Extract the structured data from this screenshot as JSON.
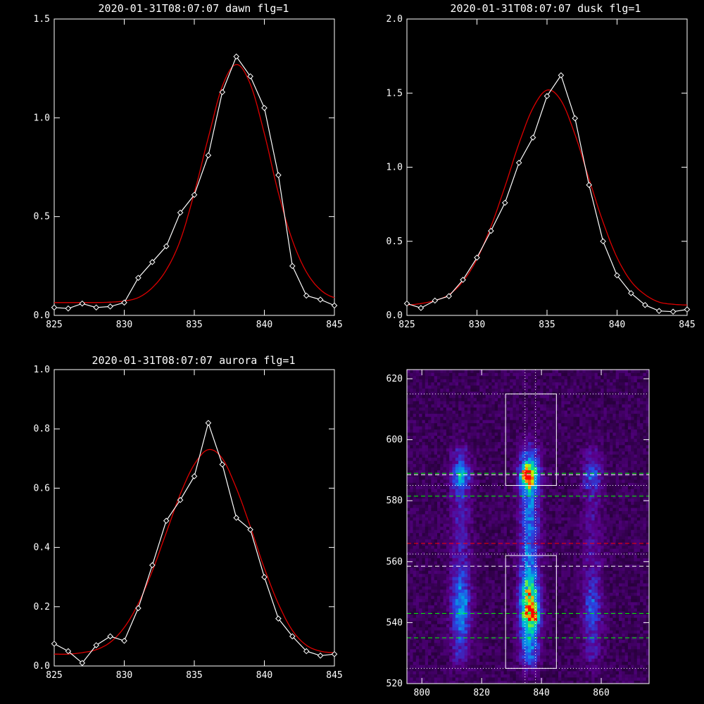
{
  "chart_data": [
    {
      "type": "line",
      "title": "2020-01-31T08:07:07 dawn flg=1",
      "xlim": [
        825,
        845
      ],
      "ylim": [
        0,
        1.5
      ],
      "xticks": [
        825,
        830,
        835,
        840,
        845
      ],
      "yticks": [
        0.0,
        0.5,
        1.0,
        1.5
      ],
      "ytick_labels": [
        "0.0",
        "0.5",
        "1.0",
        "1.5"
      ],
      "grid": false,
      "series": [
        {
          "color": "#ffffff",
          "marker": "diamond",
          "x": [
            825,
            826,
            827,
            828,
            829,
            830,
            831,
            832,
            833,
            834,
            835,
            836,
            837,
            838,
            839,
            840,
            841,
            842,
            843,
            844,
            845
          ],
          "y": [
            0.04,
            0.035,
            0.06,
            0.04,
            0.045,
            0.065,
            0.19,
            0.27,
            0.35,
            0.52,
            0.61,
            0.81,
            1.13,
            1.31,
            1.21,
            1.05,
            0.71,
            0.25,
            0.1,
            0.08,
            0.05
          ]
        },
        {
          "color": "#dd0000",
          "fit": "gaussian",
          "x": [
            825,
            826,
            827,
            828,
            829,
            830,
            831,
            832,
            833,
            834,
            835,
            836,
            837,
            838,
            839,
            840,
            841,
            842,
            843,
            844,
            845
          ],
          "y": [
            0.065,
            0.065,
            0.065,
            0.065,
            0.067,
            0.073,
            0.09,
            0.14,
            0.23,
            0.38,
            0.62,
            0.9,
            1.16,
            1.27,
            1.17,
            0.92,
            0.62,
            0.38,
            0.22,
            0.13,
            0.09
          ]
        }
      ]
    },
    {
      "type": "line",
      "title": "2020-01-31T08:07:07 dusk flg=1",
      "xlim": [
        825,
        845
      ],
      "ylim": [
        0,
        2.0
      ],
      "xticks": [
        825,
        830,
        835,
        840,
        845
      ],
      "yticks": [
        0.0,
        0.5,
        1.0,
        1.5,
        2.0
      ],
      "ytick_labels": [
        "0.0",
        "0.5",
        "1.0",
        "1.5",
        "2.0"
      ],
      "grid": false,
      "series": [
        {
          "color": "#ffffff",
          "marker": "diamond",
          "x": [
            825,
            826,
            827,
            828,
            829,
            830,
            831,
            832,
            833,
            834,
            835,
            836,
            837,
            838,
            839,
            840,
            841,
            842,
            843,
            844,
            845
          ],
          "y": [
            0.08,
            0.05,
            0.1,
            0.13,
            0.24,
            0.39,
            0.57,
            0.76,
            1.03,
            1.2,
            1.48,
            1.62,
            1.33,
            0.88,
            0.5,
            0.27,
            0.15,
            0.07,
            0.03,
            0.025,
            0.04
          ]
        },
        {
          "color": "#dd0000",
          "fit": "gaussian",
          "x": [
            825,
            826,
            827,
            828,
            829,
            830,
            831,
            832,
            833,
            834,
            835,
            836,
            837,
            838,
            839,
            840,
            841,
            842,
            843,
            844,
            845
          ],
          "y": [
            0.07,
            0.08,
            0.1,
            0.14,
            0.23,
            0.38,
            0.6,
            0.87,
            1.16,
            1.4,
            1.52,
            1.45,
            1.22,
            0.92,
            0.63,
            0.39,
            0.23,
            0.14,
            0.09,
            0.075,
            0.07
          ]
        }
      ]
    },
    {
      "type": "line",
      "title": "2020-01-31T08:07:07 aurora flg=1",
      "xlim": [
        825,
        845
      ],
      "ylim": [
        0,
        1.0
      ],
      "xticks": [
        825,
        830,
        835,
        840,
        845
      ],
      "yticks": [
        0.0,
        0.2,
        0.4,
        0.6,
        0.8,
        1.0
      ],
      "ytick_labels": [
        "0.0",
        "0.2",
        "0.4",
        "0.6",
        "0.8",
        "1.0"
      ],
      "grid": false,
      "series": [
        {
          "color": "#ffffff",
          "marker": "diamond",
          "x": [
            825,
            826,
            827,
            828,
            829,
            830,
            831,
            832,
            833,
            834,
            835,
            836,
            837,
            838,
            839,
            840,
            841,
            842,
            843,
            844,
            845
          ],
          "y": [
            0.075,
            0.05,
            0.01,
            0.07,
            0.1,
            0.085,
            0.195,
            0.34,
            0.49,
            0.56,
            0.64,
            0.82,
            0.68,
            0.5,
            0.46,
            0.3,
            0.16,
            0.1,
            0.05,
            0.035,
            0.04
          ]
        },
        {
          "color": "#dd0000",
          "fit": "gaussian",
          "x": [
            825,
            826,
            827,
            828,
            829,
            830,
            831,
            832,
            833,
            834,
            835,
            836,
            837,
            838,
            839,
            840,
            841,
            842,
            843,
            844,
            845
          ],
          "y": [
            0.04,
            0.04,
            0.045,
            0.055,
            0.08,
            0.13,
            0.21,
            0.32,
            0.45,
            0.58,
            0.68,
            0.73,
            0.7,
            0.6,
            0.47,
            0.33,
            0.21,
            0.12,
            0.07,
            0.05,
            0.045
          ]
        }
      ]
    },
    {
      "type": "heatmap",
      "title": "",
      "xlim": [
        795,
        876
      ],
      "ylim": [
        520,
        623
      ],
      "xticks": [
        800,
        820,
        840,
        860
      ],
      "yticks": [
        520,
        540,
        560,
        580,
        600,
        620
      ],
      "colormap": "rainbow",
      "emission_bands": [
        {
          "x_center": 813,
          "y_min": 528,
          "y_max": 596,
          "brightness": 0.5
        },
        {
          "x_center": 836,
          "y_min": 528,
          "y_max": 596,
          "brightness": 0.95
        },
        {
          "x_center": 857,
          "y_min": 528,
          "y_max": 596,
          "brightness": 0.35
        }
      ],
      "hot_spots": [
        {
          "x": 838,
          "y": 542
        },
        {
          "x": 835,
          "y": 588
        }
      ],
      "boxes": [
        {
          "x0": 828,
          "x1": 845,
          "y0": 585,
          "y1": 615
        },
        {
          "x0": 828,
          "x1": 845,
          "y0": 525,
          "y1": 562
        }
      ],
      "vertical_lines": [
        {
          "x": 834.5,
          "style": "dotted",
          "color": "#ffffff"
        },
        {
          "x": 838,
          "style": "dotted",
          "color": "#ffffff"
        }
      ],
      "horizontal_lines": [
        {
          "y": 615,
          "style": "dotted",
          "color": "#ffffff"
        },
        {
          "y": 589,
          "style": "dashed",
          "color": "#00ff00"
        },
        {
          "y": 588.5,
          "style": "dashed",
          "color": "#ffffff"
        },
        {
          "y": 585,
          "style": "dotted",
          "color": "#ffffff"
        },
        {
          "y": 581.5,
          "style": "dashed",
          "color": "#00ff00"
        },
        {
          "y": 566,
          "style": "dashed",
          "color": "#ff0000"
        },
        {
          "y": 562.5,
          "style": "dotted",
          "color": "#ffffff"
        },
        {
          "y": 558.5,
          "style": "dashed",
          "color": "#ffffff"
        },
        {
          "y": 543,
          "style": "dashed",
          "color": "#00ff00"
        },
        {
          "y": 535,
          "style": "dashed",
          "color": "#00ff00"
        },
        {
          "y": 525,
          "style": "dotted",
          "color": "#ffffff"
        }
      ]
    }
  ]
}
